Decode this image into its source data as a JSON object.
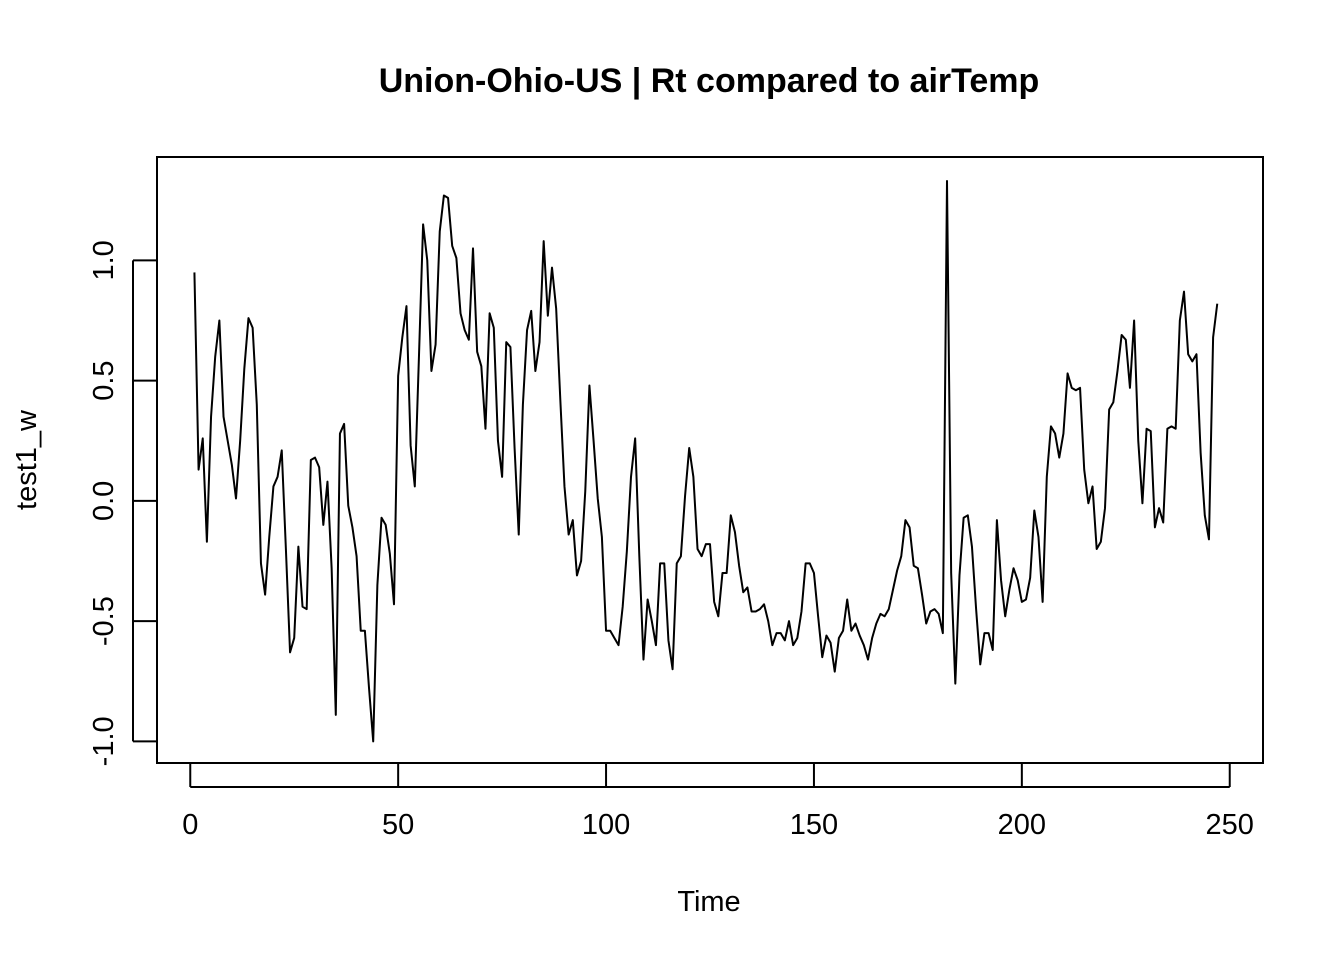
{
  "chart_data": {
    "type": "line",
    "title": "Union-Ohio-US | Rt compared to airTemp",
    "xlabel": "Time",
    "ylabel": "test1_w",
    "xlim": [
      -8,
      258
    ],
    "ylim": [
      -1.09,
      1.43
    ],
    "x_ticks": [
      0,
      50,
      100,
      150,
      200,
      250
    ],
    "x_tick_labels": [
      "0",
      "50",
      "100",
      "150",
      "200",
      "250"
    ],
    "y_ticks": [
      -1.0,
      -0.5,
      0.0,
      0.5,
      1.0
    ],
    "y_tick_labels": [
      "-1.0",
      "-0.5",
      "0.0",
      "0.5",
      "1.0"
    ],
    "grid": false,
    "legend": "none",
    "line_color": "#000000",
    "x_start": 1,
    "series": [
      {
        "values": [
          0.95,
          0.13,
          0.26,
          -0.17,
          0.35,
          0.6,
          0.75,
          0.35,
          0.25,
          0.15,
          0.01,
          0.25,
          0.55,
          0.76,
          0.72,
          0.4,
          -0.26,
          -0.39,
          -0.15,
          0.06,
          0.1,
          0.21,
          -0.2,
          -0.63,
          -0.57,
          -0.19,
          -0.44,
          -0.45,
          0.17,
          0.18,
          0.14,
          -0.1,
          0.08,
          -0.28,
          -0.89,
          0.28,
          0.32,
          -0.02,
          -0.11,
          -0.23,
          -0.54,
          -0.54,
          -0.78,
          -1.0,
          -0.35,
          -0.07,
          -0.1,
          -0.22,
          -0.43,
          0.52,
          0.68,
          0.81,
          0.23,
          0.06,
          0.6,
          1.15,
          1.0,
          0.54,
          0.65,
          1.12,
          1.27,
          1.26,
          1.06,
          1.01,
          0.78,
          0.71,
          0.67,
          1.05,
          0.62,
          0.56,
          0.3,
          0.78,
          0.72,
          0.25,
          0.1,
          0.66,
          0.64,
          0.22,
          -0.14,
          0.4,
          0.71,
          0.79,
          0.54,
          0.66,
          1.08,
          0.77,
          0.97,
          0.8,
          0.42,
          0.06,
          -0.14,
          -0.08,
          -0.31,
          -0.25,
          0.04,
          0.48,
          0.25,
          0.01,
          -0.15,
          -0.54,
          -0.54,
          -0.57,
          -0.6,
          -0.44,
          -0.21,
          0.1,
          0.26,
          -0.23,
          -0.66,
          -0.41,
          -0.5,
          -0.6,
          -0.26,
          -0.26,
          -0.58,
          -0.7,
          -0.26,
          -0.23,
          0.02,
          0.22,
          0.1,
          -0.2,
          -0.23,
          -0.18,
          -0.18,
          -0.42,
          -0.48,
          -0.3,
          -0.3,
          -0.06,
          -0.13,
          -0.27,
          -0.38,
          -0.36,
          -0.46,
          -0.46,
          -0.45,
          -0.43,
          -0.5,
          -0.6,
          -0.55,
          -0.55,
          -0.58,
          -0.5,
          -0.6,
          -0.57,
          -0.46,
          -0.26,
          -0.26,
          -0.3,
          -0.48,
          -0.65,
          -0.56,
          -0.59,
          -0.71,
          -0.57,
          -0.54,
          -0.41,
          -0.54,
          -0.51,
          -0.56,
          -0.6,
          -0.66,
          -0.57,
          -0.51,
          -0.47,
          -0.48,
          -0.45,
          -0.37,
          -0.29,
          -0.23,
          -0.08,
          -0.11,
          -0.27,
          -0.28,
          -0.39,
          -0.51,
          -0.46,
          -0.45,
          -0.47,
          -0.55,
          1.33,
          -0.3,
          -0.76,
          -0.31,
          -0.07,
          -0.06,
          -0.19,
          -0.45,
          -0.68,
          -0.55,
          -0.55,
          -0.62,
          -0.08,
          -0.33,
          -0.48,
          -0.37,
          -0.28,
          -0.33,
          -0.42,
          -0.41,
          -0.32,
          -0.04,
          -0.15,
          -0.42,
          0.1,
          0.31,
          0.28,
          0.18,
          0.28,
          0.53,
          0.47,
          0.46,
          0.47,
          0.13,
          -0.01,
          0.06,
          -0.2,
          -0.17,
          -0.03,
          0.38,
          0.41,
          0.54,
          0.69,
          0.67,
          0.47,
          0.75,
          0.25,
          -0.01,
          0.3,
          0.29,
          -0.11,
          -0.03,
          -0.09,
          0.3,
          0.31,
          0.3,
          0.75,
          0.87,
          0.61,
          0.58,
          0.61,
          0.2,
          -0.06,
          -0.16,
          0.68,
          0.82
        ]
      }
    ]
  }
}
